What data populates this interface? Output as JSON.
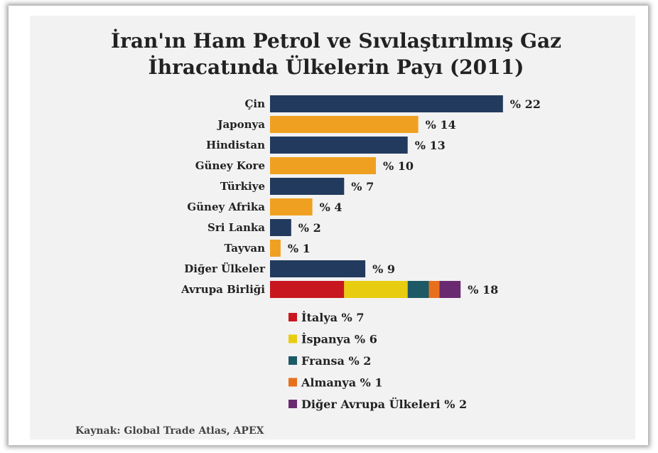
{
  "chart_data": {
    "type": "bar",
    "orientation": "horizontal",
    "title_lines": [
      "İran'ın Ham Petrol ve Sıvılaştırılmış Gaz",
      "İhracatında Ülkelerin Payı (2011)"
    ],
    "categories": [
      "Çin",
      "Japonya",
      "Hindistan",
      "Güney Kore",
      "Türkiye",
      "Güney Afrika",
      "Sri Lanka",
      "Tayvan",
      "Diğer Ülkeler",
      "Avrupa Birliği"
    ],
    "values": [
      22,
      14,
      13,
      10,
      7,
      4,
      2,
      1,
      9,
      18
    ],
    "value_labels": [
      "% 22",
      "% 14",
      "% 13",
      "% 10",
      "% 7",
      "% 4",
      "% 2",
      "% 1",
      "% 9",
      "% 18"
    ],
    "bar_colors": [
      "#223a5e",
      "#f0a020",
      "#223a5e",
      "#f0a020",
      "#223a5e",
      "#f0a020",
      "#223a5e",
      "#f0a020",
      "#223a5e",
      null
    ],
    "stacked_category": "Avrupa Birliği",
    "stack_segments": [
      {
        "name": "İtalya",
        "value": 7,
        "color": "#c8171e",
        "legend": "İtalya % 7"
      },
      {
        "name": "İspanya",
        "value": 6,
        "color": "#e8cc10",
        "legend": "İspanya % 6"
      },
      {
        "name": "Fransa",
        "value": 2,
        "color": "#1d5a66",
        "legend": "Fransa % 2"
      },
      {
        "name": "Almanya",
        "value": 1,
        "color": "#e8701c",
        "legend": "Almanya % 1"
      },
      {
        "name": "Diğer Avrupa Ülkeleri",
        "value": 2,
        "color": "#6a2a70",
        "legend": "Diğer Avrupa Ülkeleri % 2"
      }
    ],
    "legend_placement": "below-bars",
    "grid": false,
    "xlim": [
      0,
      22
    ],
    "source": "Kaynak: Global Trade Atlas, APEX"
  }
}
